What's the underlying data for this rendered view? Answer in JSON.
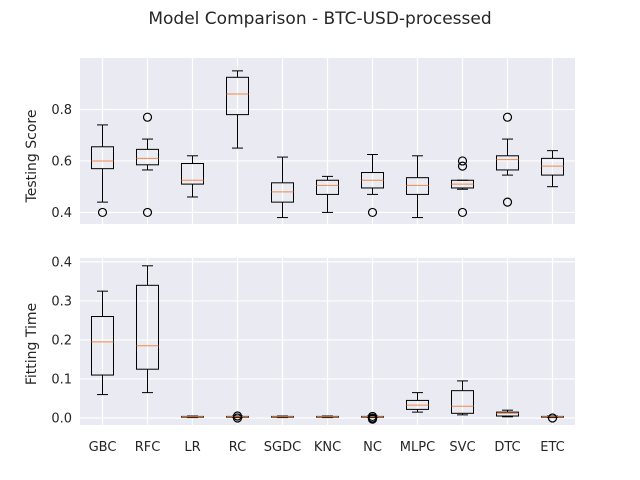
{
  "chart_data": {
    "type": "box",
    "title": "Model Comparison - BTC-USD-processed",
    "categories": [
      "GBC",
      "RFC",
      "LR",
      "RC",
      "SGDC",
      "KNC",
      "NC",
      "MLPC",
      "SVC",
      "DTC",
      "ETC"
    ],
    "grid": true,
    "panels": [
      {
        "ylabel": "Testing Score",
        "ylim": [
          0.355,
          1.0
        ],
        "yticks": [
          "0.4",
          "0.6",
          "0.8"
        ],
        "ytick_values": [
          0.4,
          0.6,
          0.8
        ],
        "boxes": [
          {
            "whislo": 0.44,
            "q1": 0.57,
            "med": 0.6,
            "q3": 0.655,
            "whishi": 0.74,
            "fliers": [
              0.4
            ]
          },
          {
            "whislo": 0.565,
            "q1": 0.585,
            "med": 0.61,
            "q3": 0.645,
            "whishi": 0.685,
            "fliers": [
              0.4,
              0.77
            ]
          },
          {
            "whislo": 0.46,
            "q1": 0.51,
            "med": 0.525,
            "q3": 0.59,
            "whishi": 0.62,
            "fliers": []
          },
          {
            "whislo": 0.65,
            "q1": 0.78,
            "med": 0.86,
            "q3": 0.925,
            "whishi": 0.95,
            "fliers": []
          },
          {
            "whislo": 0.38,
            "q1": 0.44,
            "med": 0.48,
            "q3": 0.515,
            "whishi": 0.615,
            "fliers": []
          },
          {
            "whislo": 0.4,
            "q1": 0.47,
            "med": 0.505,
            "q3": 0.525,
            "whishi": 0.54,
            "fliers": []
          },
          {
            "whislo": 0.47,
            "q1": 0.495,
            "med": 0.525,
            "q3": 0.555,
            "whishi": 0.625,
            "fliers": [
              0.4
            ]
          },
          {
            "whislo": 0.38,
            "q1": 0.47,
            "med": 0.505,
            "q3": 0.535,
            "whishi": 0.62,
            "fliers": []
          },
          {
            "whislo": 0.49,
            "q1": 0.495,
            "med": 0.51,
            "q3": 0.525,
            "whishi": 0.525,
            "fliers": [
              0.4,
              0.58,
              0.6
            ]
          },
          {
            "whislo": 0.545,
            "q1": 0.565,
            "med": 0.605,
            "q3": 0.62,
            "whishi": 0.685,
            "fliers": [
              0.44,
              0.77
            ]
          },
          {
            "whislo": 0.5,
            "q1": 0.545,
            "med": 0.58,
            "q3": 0.61,
            "whishi": 0.64,
            "fliers": []
          }
        ]
      },
      {
        "ylabel": "Fitting Time",
        "ylim": [
          -0.018,
          0.41
        ],
        "yticks": [
          "0.0",
          "0.1",
          "0.2",
          "0.3",
          "0.4"
        ],
        "ytick_values": [
          0.0,
          0.1,
          0.2,
          0.3,
          0.4
        ],
        "boxes": [
          {
            "whislo": 0.06,
            "q1": 0.11,
            "med": 0.195,
            "q3": 0.26,
            "whishi": 0.325,
            "fliers": []
          },
          {
            "whislo": 0.065,
            "q1": 0.125,
            "med": 0.185,
            "q3": 0.34,
            "whishi": 0.39,
            "fliers": []
          },
          {
            "whislo": 0.001,
            "q1": 0.002,
            "med": 0.003,
            "q3": 0.004,
            "whishi": 0.005,
            "fliers": []
          },
          {
            "whislo": 0.001,
            "q1": 0.002,
            "med": 0.003,
            "q3": 0.004,
            "whishi": 0.005,
            "fliers": [
              0.0,
              0.005
            ]
          },
          {
            "whislo": 0.001,
            "q1": 0.002,
            "med": 0.003,
            "q3": 0.004,
            "whishi": 0.005,
            "fliers": []
          },
          {
            "whislo": 0.001,
            "q1": 0.002,
            "med": 0.003,
            "q3": 0.004,
            "whishi": 0.005,
            "fliers": []
          },
          {
            "whislo": 0.001,
            "q1": 0.002,
            "med": 0.003,
            "q3": 0.004,
            "whishi": 0.005,
            "fliers": [
              -0.003,
              0.0,
              0.004
            ]
          },
          {
            "whislo": 0.015,
            "q1": 0.022,
            "med": 0.033,
            "q3": 0.045,
            "whishi": 0.065,
            "fliers": []
          },
          {
            "whislo": 0.008,
            "q1": 0.012,
            "med": 0.03,
            "q3": 0.07,
            "whishi": 0.095,
            "fliers": []
          },
          {
            "whislo": 0.003,
            "q1": 0.005,
            "med": 0.012,
            "q3": 0.015,
            "whishi": 0.02,
            "fliers": []
          },
          {
            "whislo": 0.001,
            "q1": 0.002,
            "med": 0.003,
            "q3": 0.004,
            "whishi": 0.005,
            "fliers": [
              0.0
            ]
          }
        ]
      }
    ]
  }
}
